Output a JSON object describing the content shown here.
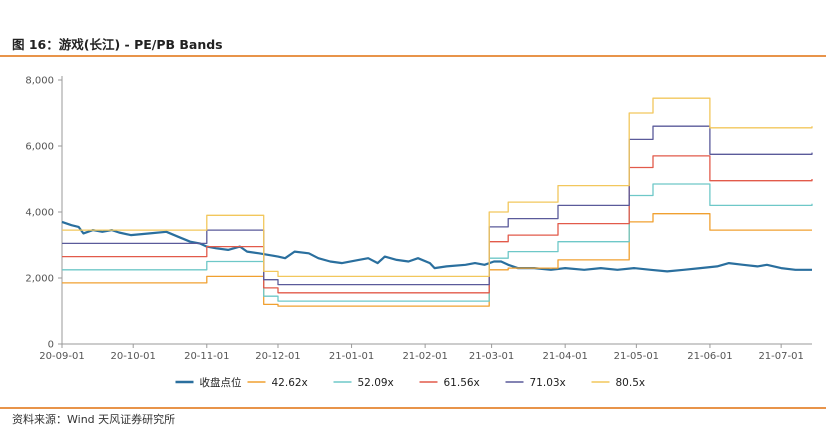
{
  "figure": {
    "title": "图 16：游戏(长江) - PE/PB Bands",
    "source": "资料来源：Wind 天风证券研究所"
  },
  "chart_data": {
    "type": "line",
    "ylim": [
      0,
      8000
    ],
    "yticks": [
      0,
      2000,
      4000,
      6000,
      8000
    ],
    "ytick_labels": [
      "0",
      "2,000",
      "4,000",
      "6,000",
      "8,000"
    ],
    "x_range": [
      "2020-09-01",
      "2021-07-14"
    ],
    "xticks": [
      "2020-09-01",
      "2020-10-01",
      "2020-11-01",
      "2020-12-01",
      "2021-01-01",
      "2021-02-01",
      "2021-03-01",
      "2021-04-01",
      "2021-05-01",
      "2021-06-01",
      "2021-07-01"
    ],
    "xtick_labels": [
      "20-09-01",
      "20-10-01",
      "20-11-01",
      "20-12-01",
      "21-01-01",
      "21-02-01",
      "21-03-01",
      "21-04-01",
      "21-05-01",
      "21-06-01",
      "21-07-01"
    ],
    "grid": false,
    "legend_position": "bottom",
    "series": [
      {
        "name": "收盘点位",
        "color": "#2a6f9e",
        "points": [
          [
            "2020-09-01",
            3700
          ],
          [
            "2020-09-05",
            3600
          ],
          [
            "2020-09-08",
            3550
          ],
          [
            "2020-09-10",
            3350
          ],
          [
            "2020-09-14",
            3450
          ],
          [
            "2020-09-18",
            3400
          ],
          [
            "2020-09-22",
            3450
          ],
          [
            "2020-09-25",
            3380
          ],
          [
            "2020-09-30",
            3300
          ],
          [
            "2020-10-08",
            3350
          ],
          [
            "2020-10-15",
            3400
          ],
          [
            "2020-10-20",
            3250
          ],
          [
            "2020-10-25",
            3100
          ],
          [
            "2020-10-29",
            3050
          ],
          [
            "2020-11-01",
            2950
          ],
          [
            "2020-11-05",
            2900
          ],
          [
            "2020-11-10",
            2850
          ],
          [
            "2020-11-15",
            2950
          ],
          [
            "2020-11-18",
            2800
          ],
          [
            "2020-11-23",
            2750
          ],
          [
            "2020-11-27",
            2700
          ],
          [
            "2020-12-01",
            2650
          ],
          [
            "2020-12-04",
            2600
          ],
          [
            "2020-12-08",
            2800
          ],
          [
            "2020-12-14",
            2750
          ],
          [
            "2020-12-18",
            2600
          ],
          [
            "2020-12-23",
            2500
          ],
          [
            "2020-12-28",
            2450
          ],
          [
            "2021-01-04",
            2550
          ],
          [
            "2021-01-08",
            2600
          ],
          [
            "2021-01-12",
            2450
          ],
          [
            "2021-01-15",
            2650
          ],
          [
            "2021-01-20",
            2550
          ],
          [
            "2021-01-25",
            2500
          ],
          [
            "2021-01-29",
            2600
          ],
          [
            "2021-02-03",
            2450
          ],
          [
            "2021-02-05",
            2300
          ],
          [
            "2021-02-10",
            2350
          ],
          [
            "2021-02-18",
            2400
          ],
          [
            "2021-02-22",
            2450
          ],
          [
            "2021-02-26",
            2400
          ],
          [
            "2021-03-02",
            2500
          ],
          [
            "2021-03-05",
            2500
          ],
          [
            "2021-03-08",
            2400
          ],
          [
            "2021-03-12",
            2300
          ],
          [
            "2021-03-19",
            2300
          ],
          [
            "2021-03-26",
            2250
          ],
          [
            "2021-04-01",
            2300
          ],
          [
            "2021-04-09",
            2250
          ],
          [
            "2021-04-16",
            2300
          ],
          [
            "2021-04-23",
            2250
          ],
          [
            "2021-04-30",
            2300
          ],
          [
            "2021-05-07",
            2250
          ],
          [
            "2021-05-14",
            2200
          ],
          [
            "2021-05-21",
            2250
          ],
          [
            "2021-05-28",
            2300
          ],
          [
            "2021-06-04",
            2350
          ],
          [
            "2021-06-09",
            2450
          ],
          [
            "2021-06-15",
            2400
          ],
          [
            "2021-06-21",
            2350
          ],
          [
            "2021-06-25",
            2400
          ],
          [
            "2021-07-01",
            2300
          ],
          [
            "2021-07-07",
            2250
          ],
          [
            "2021-07-14",
            2250
          ]
        ]
      },
      {
        "name": "42.62x",
        "color": "#f0a030",
        "steps": [
          [
            "2020-09-01",
            1850
          ],
          [
            "2020-11-01",
            2050
          ],
          [
            "2020-11-25",
            1200
          ],
          [
            "2020-12-01",
            1150
          ],
          [
            "2021-02-28",
            2250
          ],
          [
            "2021-03-08",
            2300
          ],
          [
            "2021-03-29",
            2550
          ],
          [
            "2021-04-28",
            3700
          ],
          [
            "2021-05-08",
            3950
          ],
          [
            "2021-06-01",
            3450
          ],
          [
            "2021-07-14",
            3450
          ]
        ]
      },
      {
        "name": "52.09x",
        "color": "#6ec8c8",
        "steps": [
          [
            "2020-09-01",
            2250
          ],
          [
            "2020-11-01",
            2500
          ],
          [
            "2020-11-25",
            1450
          ],
          [
            "2020-12-01",
            1300
          ],
          [
            "2021-02-28",
            2600
          ],
          [
            "2021-03-08",
            2800
          ],
          [
            "2021-03-29",
            3100
          ],
          [
            "2021-04-28",
            4500
          ],
          [
            "2021-05-08",
            4850
          ],
          [
            "2021-06-01",
            4200
          ],
          [
            "2021-07-14",
            4250
          ]
        ]
      },
      {
        "name": "61.56x",
        "color": "#e25a4a",
        "steps": [
          [
            "2020-09-01",
            2650
          ],
          [
            "2020-11-01",
            2950
          ],
          [
            "2020-11-25",
            1700
          ],
          [
            "2020-12-01",
            1550
          ],
          [
            "2021-02-28",
            3100
          ],
          [
            "2021-03-08",
            3300
          ],
          [
            "2021-03-29",
            3650
          ],
          [
            "2021-04-28",
            5350
          ],
          [
            "2021-05-08",
            5700
          ],
          [
            "2021-06-01",
            4950
          ],
          [
            "2021-07-14",
            5000
          ]
        ]
      },
      {
        "name": "71.03x",
        "color": "#5a5a9a",
        "steps": [
          [
            "2020-09-01",
            3050
          ],
          [
            "2020-11-01",
            3450
          ],
          [
            "2020-11-25",
            1950
          ],
          [
            "2020-12-01",
            1800
          ],
          [
            "2021-02-28",
            3550
          ],
          [
            "2021-03-08",
            3800
          ],
          [
            "2021-03-29",
            4200
          ],
          [
            "2021-04-28",
            6200
          ],
          [
            "2021-05-08",
            6600
          ],
          [
            "2021-06-01",
            5750
          ],
          [
            "2021-07-14",
            5800
          ]
        ]
      },
      {
        "name": "80.5x",
        "color": "#f2c75c",
        "steps": [
          [
            "2020-09-01",
            3450
          ],
          [
            "2020-11-01",
            3900
          ],
          [
            "2020-11-25",
            2200
          ],
          [
            "2020-12-01",
            2050
          ],
          [
            "2021-02-28",
            4000
          ],
          [
            "2021-03-08",
            4300
          ],
          [
            "2021-03-29",
            4800
          ],
          [
            "2021-04-28",
            7000
          ],
          [
            "2021-05-08",
            7450
          ],
          [
            "2021-06-01",
            6550
          ],
          [
            "2021-07-14",
            6600
          ]
        ]
      }
    ]
  }
}
